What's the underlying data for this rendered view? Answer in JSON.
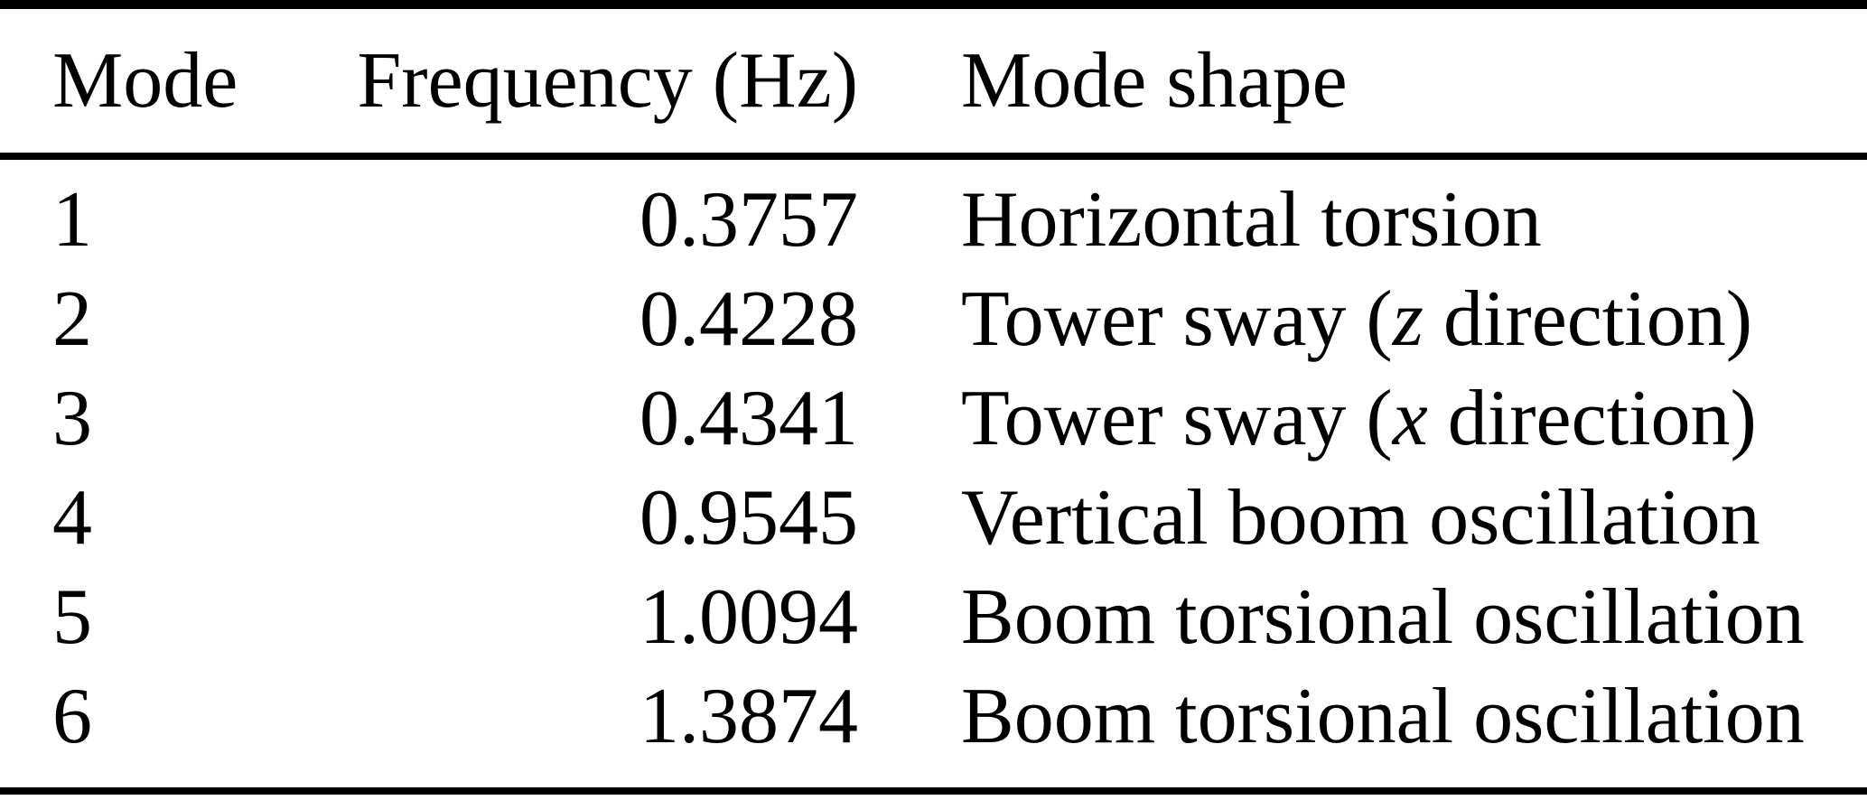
{
  "table": {
    "columns": [
      {
        "label": "Mode"
      },
      {
        "label": "Frequency (Hz)"
      },
      {
        "label": "Mode shape"
      }
    ],
    "rows": [
      {
        "mode": "1",
        "frequency": "0.3757",
        "shape_prefix": "Horizontal torsion",
        "shape_var": "",
        "shape_suffix": ""
      },
      {
        "mode": "2",
        "frequency": "0.4228",
        "shape_prefix": "Tower sway (",
        "shape_var": "z",
        "shape_suffix": " direction)"
      },
      {
        "mode": "3",
        "frequency": "0.4341",
        "shape_prefix": "Tower sway (",
        "shape_var": "x",
        "shape_suffix": " direction)"
      },
      {
        "mode": "4",
        "frequency": "0.9545",
        "shape_prefix": "Vertical boom oscillation",
        "shape_var": "",
        "shape_suffix": ""
      },
      {
        "mode": "5",
        "frequency": "1.0094",
        "shape_prefix": "Boom torsional oscillation",
        "shape_var": "",
        "shape_suffix": ""
      },
      {
        "mode": "6",
        "frequency": "1.3874",
        "shape_prefix": "Boom torsional oscillation",
        "shape_var": "",
        "shape_suffix": ""
      }
    ]
  },
  "colors": {
    "text": "#000000",
    "background": "#ffffff",
    "rule": "#000000"
  },
  "chart_data": {
    "type": "table",
    "columns": [
      "Mode",
      "Frequency (Hz)",
      "Mode shape"
    ],
    "rows": [
      [
        1,
        0.3757,
        "Horizontal torsion"
      ],
      [
        2,
        0.4228,
        "Tower sway (z direction)"
      ],
      [
        3,
        0.4341,
        "Tower sway (x direction)"
      ],
      [
        4,
        0.9545,
        "Vertical boom oscillation"
      ],
      [
        5,
        1.0094,
        "Boom torsional oscillation"
      ],
      [
        6,
        1.3874,
        "Boom torsional oscillation"
      ]
    ]
  }
}
